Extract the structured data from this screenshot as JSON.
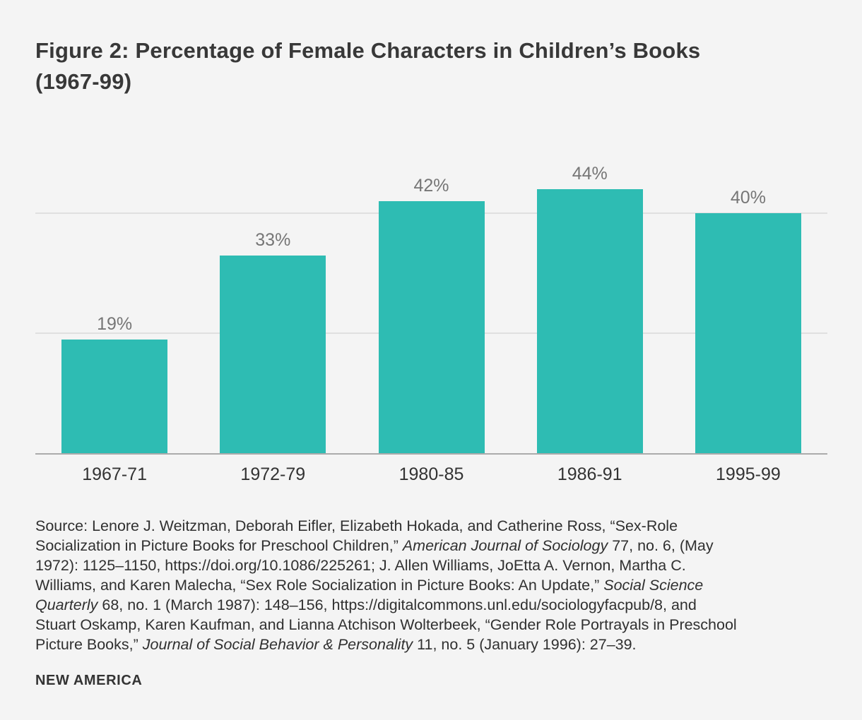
{
  "page": {
    "background": "#f4f4f4",
    "brand": "NEW AMERICA"
  },
  "title": "Figure 2: Percentage of Female Characters in Children’s Books (1967-99)",
  "chart_data": {
    "type": "bar",
    "title": "Figure 2: Percentage of Female Characters in Children’s Books (1967-99)",
    "categories": [
      "1967-71",
      "1972-79",
      "1980-85",
      "1986-91",
      "1995-99"
    ],
    "values": [
      19,
      33,
      42,
      44,
      40
    ],
    "value_labels": [
      "19%",
      "33%",
      "42%",
      "44%",
      "40%"
    ],
    "xlabel": "",
    "ylabel": "",
    "ylim": [
      0,
      49
    ],
    "pixels_per_percent": 8.5,
    "gridlines_percent": [
      20,
      40
    ],
    "grid": true,
    "legend": false,
    "bar_color": "#2ebcb3",
    "gridline_color": "#e0e0e0",
    "axis_line_color": "#ababab",
    "value_label_color": "#767676",
    "category_label_color": "#333333"
  },
  "source": {
    "lines": [
      [
        {
          "t": "Source: Lenore J. Weitzman, Deborah Eifler, Elizabeth Hokada, and Catherine Ross, “Sex-Role",
          "i": false
        }
      ],
      [
        {
          "t": "Socialization in Picture Books for Preschool Children,” ",
          "i": false
        },
        {
          "t": "American Journal of Sociology",
          "i": true
        },
        {
          "t": " 77, no. 6, (May",
          "i": false
        }
      ],
      [
        {
          "t": "1972): 1125–1150, https://doi.org/10.1086/225261; J. Allen Williams, JoEtta A. Vernon, Martha C.",
          "i": false
        }
      ],
      [
        {
          "t": "Williams, and Karen Malecha, “Sex Role Socialization in Picture Books: An Update,” ",
          "i": false
        },
        {
          "t": "Social Science",
          "i": true
        }
      ],
      [
        {
          "t": "Quarterly",
          "i": true
        },
        {
          "t": " 68, no. 1 (March 1987): 148–156, https://digitalcommons.unl.edu/sociologyfacpub/8, and",
          "i": false
        }
      ],
      [
        {
          "t": "Stuart Oskamp, Karen Kaufman, and Lianna Atchison Wolterbeek, “Gender Role Portrayals in Preschool",
          "i": false
        }
      ],
      [
        {
          "t": "Picture Books,” ",
          "i": false
        },
        {
          "t": "Journal of Social Behavior & Personality",
          "i": true
        },
        {
          "t": " 11, no. 5 (January 1996): 27–39.",
          "i": false
        }
      ]
    ]
  }
}
